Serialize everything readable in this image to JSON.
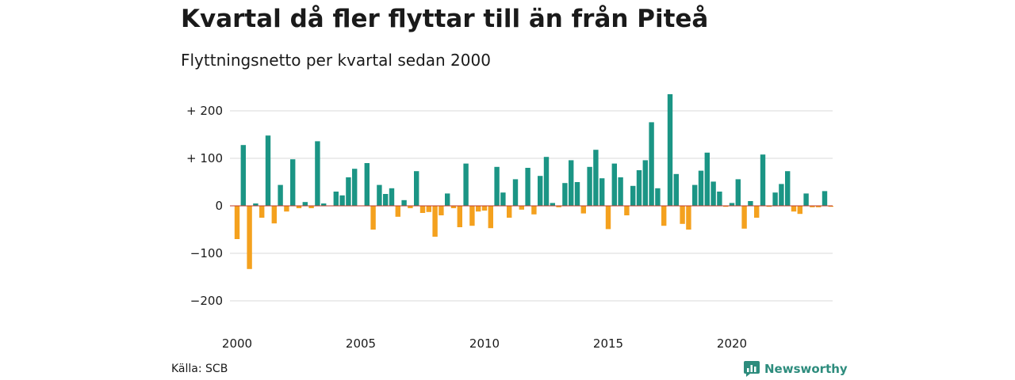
{
  "header": {
    "title": "Kvartal då fler flyttar till än från Piteå",
    "subtitle": "Flyttningsnetto per kvartal sedan 2000"
  },
  "footer": {
    "source": "Källa: SCB",
    "brand": "Newsworthy"
  },
  "colors": {
    "positive": "#1b9585",
    "negative": "#f4a11e",
    "grid": "#d9d9d9",
    "zero_line": "#c0392b",
    "brand": "#2d8c7d"
  },
  "icons": {
    "brand": "newsworthy-logo-icon"
  },
  "chart_data": {
    "type": "bar",
    "title": "Kvartal då fler flyttar till än från Piteå",
    "subtitle": "Flyttningsnetto per kvartal sedan 2000",
    "xlabel": "",
    "ylabel": "",
    "ylim": [
      -220,
      240
    ],
    "y_ticks": [
      {
        "value": 200,
        "label": "+ 200"
      },
      {
        "value": 100,
        "label": "+ 100"
      },
      {
        "value": 0,
        "label": "0"
      },
      {
        "value": -100,
        "label": "−100"
      },
      {
        "value": -200,
        "label": "−200"
      }
    ],
    "x_ticks": [
      {
        "quarter_index": 0,
        "label": "2000"
      },
      {
        "quarter_index": 20,
        "label": "2005"
      },
      {
        "quarter_index": 40,
        "label": "2010"
      },
      {
        "quarter_index": 60,
        "label": "2015"
      },
      {
        "quarter_index": 80,
        "label": "2020"
      }
    ],
    "grid": true,
    "legend": "none",
    "first_quarter": "2000 Q1",
    "values": [
      -70,
      128,
      -133,
      5,
      -25,
      148,
      -37,
      44,
      -12,
      98,
      -5,
      8,
      -5,
      136,
      5,
      0,
      30,
      22,
      60,
      78,
      0,
      90,
      -50,
      44,
      25,
      37,
      -23,
      12,
      -5,
      73,
      -15,
      -13,
      -65,
      -20,
      26,
      -5,
      -45,
      89,
      -42,
      -12,
      -10,
      -47,
      82,
      28,
      -25,
      56,
      -8,
      80,
      -18,
      63,
      103,
      6,
      -3,
      48,
      96,
      50,
      -16,
      82,
      118,
      58,
      -49,
      89,
      60,
      -20,
      42,
      75,
      96,
      176,
      37,
      -42,
      235,
      67,
      -38,
      -50,
      44,
      74,
      112,
      51,
      30,
      -2,
      6,
      56,
      -48,
      10,
      -25,
      108,
      -2,
      28,
      46,
      73,
      -12,
      -17,
      26,
      -3,
      -3,
      31,
      -2
    ]
  }
}
